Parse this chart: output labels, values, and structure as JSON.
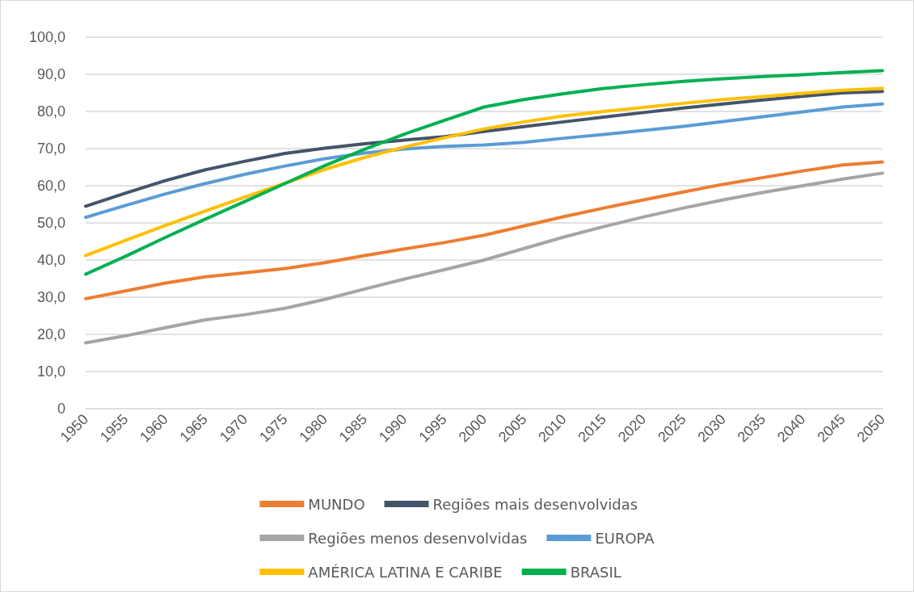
{
  "chart_data": {
    "type": "line",
    "categories": [
      "1950",
      "1955",
      "1960",
      "1965",
      "1970",
      "1975",
      "1980",
      "1985",
      "1990",
      "1995",
      "2000",
      "2005",
      "2010",
      "2015",
      "2020",
      "2025",
      "2030",
      "2035",
      "2040",
      "2045",
      "2050"
    ],
    "series": [
      {
        "name": "MUNDO",
        "color": "#ed7d31",
        "values": [
          29.6,
          31.7,
          33.8,
          35.5,
          36.6,
          37.7,
          39.3,
          41.2,
          43.0,
          44.7,
          46.7,
          49.2,
          51.7,
          54.0,
          56.2,
          58.3,
          60.4,
          62.2,
          64.0,
          65.6,
          66.4
        ]
      },
      {
        "name": "Regiões mais desenvolvidas",
        "color": "#44546a",
        "values": [
          54.5,
          58.0,
          61.4,
          64.3,
          66.6,
          68.7,
          70.1,
          71.3,
          72.3,
          73.2,
          74.6,
          75.9,
          77.2,
          78.5,
          79.7,
          80.9,
          82.0,
          83.1,
          84.1,
          85.0,
          85.4
        ]
      },
      {
        "name": "Regiões menos desenvolvidas",
        "color": "#a5a5a5",
        "values": [
          17.7,
          19.6,
          21.8,
          23.9,
          25.3,
          27.0,
          29.4,
          32.2,
          34.9,
          37.4,
          40.0,
          43.1,
          46.2,
          49.0,
          51.6,
          54.0,
          56.2,
          58.2,
          60.0,
          61.8,
          63.4
        ]
      },
      {
        "name": "EUROPA",
        "color": "#5b9bd5",
        "values": [
          51.5,
          54.7,
          57.8,
          60.6,
          63.1,
          65.3,
          67.3,
          68.8,
          69.9,
          70.6,
          71.0,
          71.7,
          72.8,
          73.8,
          74.9,
          76.0,
          77.3,
          78.6,
          79.9,
          81.2,
          82.0
        ]
      },
      {
        "name": "AMÉRICA LATINA E CARIBE",
        "color": "#ffc000",
        "values": [
          41.2,
          45.3,
          49.3,
          53.2,
          57.0,
          60.7,
          64.4,
          67.6,
          70.4,
          72.9,
          75.3,
          77.2,
          78.8,
          80.0,
          81.1,
          82.2,
          83.2,
          84.0,
          84.9,
          85.7,
          86.2
        ]
      },
      {
        "name": "BRASIL",
        "color": "#00b050",
        "values": [
          36.2,
          41.0,
          46.1,
          51.0,
          55.8,
          60.6,
          65.4,
          69.8,
          73.9,
          77.6,
          81.2,
          83.2,
          84.8,
          86.2,
          87.2,
          88.1,
          88.8,
          89.4,
          89.9,
          90.5,
          91.0
        ]
      }
    ],
    "ylim": [
      0,
      100
    ],
    "yticks": [
      0,
      {
        "value": 10,
        "label": "10,0"
      },
      {
        "value": 20,
        "label": "20,0"
      },
      {
        "value": 30,
        "label": "30,0"
      },
      {
        "value": 40,
        "label": "40,0"
      },
      {
        "value": 50,
        "label": "50,0"
      },
      {
        "value": 60,
        "label": "60,0"
      },
      {
        "value": 70,
        "label": "70,0"
      },
      {
        "value": 80,
        "label": "80,0"
      },
      {
        "value": 90,
        "label": "90,0"
      },
      {
        "value": 100,
        "label": "100,0"
      }
    ],
    "grid": "y",
    "legend": "bottom",
    "marker": "none",
    "line_style": "solid"
  }
}
